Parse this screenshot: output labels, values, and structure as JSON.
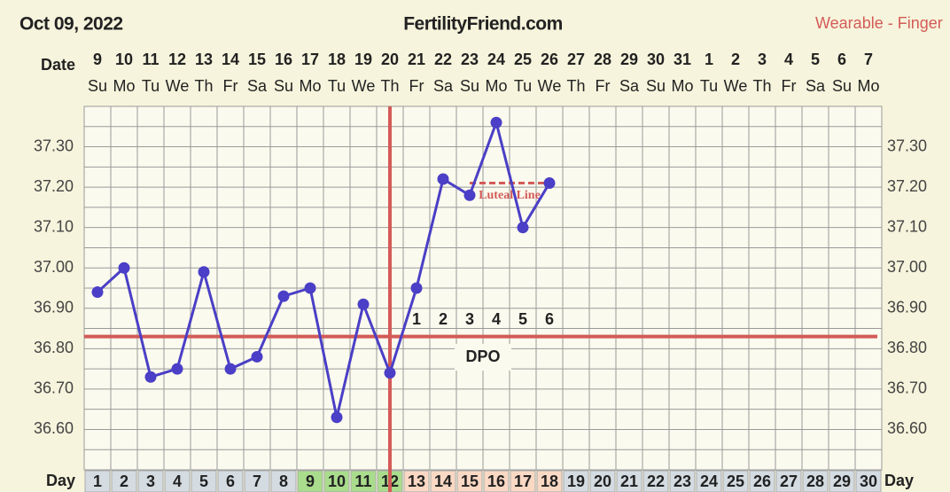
{
  "chart_data": {
    "type": "line",
    "header": {
      "date": "Oct 09, 2022",
      "site": "FertilityFriend.com",
      "source": "Wearable - Finger"
    },
    "date_label": "Date",
    "dates": [
      "9",
      "10",
      "11",
      "12",
      "13",
      "14",
      "15",
      "16",
      "17",
      "18",
      "19",
      "20",
      "21",
      "22",
      "23",
      "24",
      "25",
      "26",
      "27",
      "28",
      "29",
      "30",
      "31",
      "1",
      "2",
      "3",
      "4",
      "5",
      "6",
      "7"
    ],
    "weekdays": [
      "Su",
      "Mo",
      "Tu",
      "We",
      "Th",
      "Fr",
      "Sa",
      "Su",
      "Mo",
      "Tu",
      "We",
      "Th",
      "Fr",
      "Sa",
      "Su",
      "Mo",
      "Tu",
      "We",
      "Th",
      "Fr",
      "Sa",
      "Su",
      "Mo",
      "Tu",
      "We",
      "Th",
      "Fr",
      "Sa",
      "Su",
      "Mo"
    ],
    "day_label": "Day",
    "categories": [
      1,
      2,
      3,
      4,
      5,
      6,
      7,
      8,
      9,
      10,
      11,
      12,
      13,
      14,
      15,
      16,
      17,
      18,
      19,
      20,
      21,
      22,
      23,
      24,
      25,
      26,
      27,
      28,
      29,
      30
    ],
    "series": [
      {
        "name": "Temperature",
        "color": "#4a3fc6",
        "values": [
          36.94,
          37.0,
          36.73,
          36.75,
          36.99,
          36.75,
          36.78,
          36.93,
          36.95,
          36.63,
          36.91,
          36.74,
          36.95,
          37.22,
          37.18,
          37.36,
          37.1,
          37.21,
          null,
          null,
          null,
          null,
          null,
          null,
          null,
          null,
          null,
          null,
          null,
          null
        ]
      }
    ],
    "ylim": [
      36.5,
      37.4
    ],
    "yticks": [
      {
        "value": 36.6,
        "label": "36.60"
      },
      {
        "value": 36.7,
        "label": "36.70"
      },
      {
        "value": 36.8,
        "label": "36.80"
      },
      {
        "value": 36.9,
        "label": "36.90"
      },
      {
        "value": 37.0,
        "label": "37.00"
      },
      {
        "value": 37.1,
        "label": "37.10"
      },
      {
        "value": 37.2,
        "label": "37.20"
      },
      {
        "value": 37.3,
        "label": "37.30"
      }
    ],
    "coverline": 36.83,
    "ovulation_day": 12,
    "fertile_range": [
      9,
      12
    ],
    "dpo_labels": [
      1,
      2,
      3,
      4,
      5,
      6
    ],
    "dpo_title": "DPO",
    "luteal_line": {
      "label": "Luteal Line",
      "value": 37.21,
      "range": [
        15,
        18
      ]
    },
    "marker_color": "#d35b58"
  }
}
